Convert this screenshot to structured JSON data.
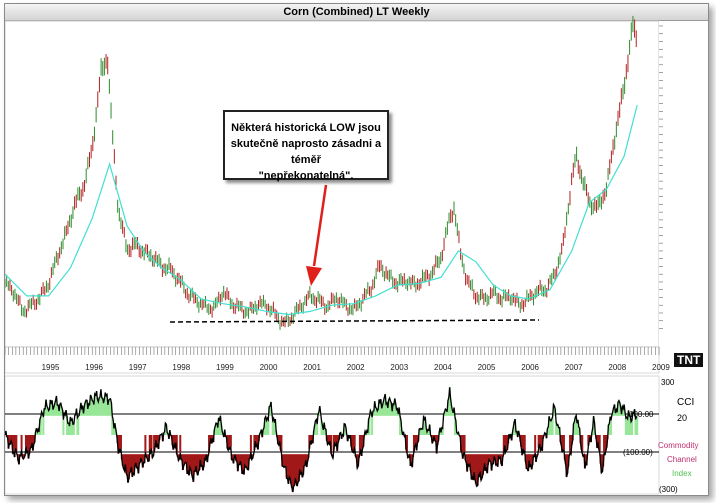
{
  "window": {
    "title": "Corn (Combined) LT Weekly"
  },
  "annotation": {
    "text_lines": [
      "Některá historická LOW jsou",
      "skutečně naprosto zásadni a téměř",
      "\"nepřekonatelná\"."
    ]
  },
  "logo": "TNT",
  "colors": {
    "price": "#8b1a1a",
    "ma": "#40e0d0",
    "cci_pos": "#98e698",
    "cci_neg": "#a01818",
    "cci_line": "#000000",
    "arrow": "#e0201a"
  },
  "chart_data": [
    {
      "type": "line",
      "title": "Corn (Combined) LT Weekly",
      "x_labels": [
        "1995",
        "1996",
        "1997",
        "1998",
        "1999",
        "2000",
        "2001",
        "2002",
        "2003",
        "2004",
        "2005",
        "2006",
        "2007",
        "2008",
        "2009"
      ],
      "ylim": [
        150,
        560
      ],
      "grid": false,
      "series": [
        {
          "style": "price bars",
          "x": [
            1994.0,
            1994.2,
            1994.4,
            1994.6,
            1994.8,
            1995.0,
            1995.2,
            1995.4,
            1995.6,
            1995.8,
            1996.0,
            1996.2,
            1996.35,
            1996.45,
            1996.6,
            1996.8,
            1997.0,
            1997.2,
            1997.4,
            1997.6,
            1997.8,
            1998.0,
            1998.2,
            1998.4,
            1998.6,
            1998.8,
            1999.0,
            1999.2,
            1999.4,
            1999.6,
            1999.8,
            2000.0,
            2000.2,
            2000.4,
            2000.6,
            2000.8,
            2001.0,
            2001.2,
            2001.4,
            2001.6,
            2001.8,
            2002.0,
            2002.2,
            2002.4,
            2002.6,
            2002.8,
            2003.0,
            2003.2,
            2003.4,
            2003.6,
            2003.8,
            2004.0,
            2004.2,
            2004.3,
            2004.45,
            2004.6,
            2004.8,
            2005.0,
            2005.2,
            2005.4,
            2005.6,
            2005.8,
            2006.0,
            2006.2,
            2006.4,
            2006.6,
            2006.8,
            2007.0,
            2007.1,
            2007.2,
            2007.4,
            2007.6,
            2007.8,
            2008.0,
            2008.2,
            2008.4,
            2008.5
          ],
          "values": [
            228,
            218,
            192,
            200,
            210,
            228,
            262,
            292,
            330,
            352,
            402,
            500,
            520,
            430,
            322,
            272,
            278,
            268,
            262,
            250,
            246,
            232,
            214,
            206,
            198,
            196,
            218,
            202,
            196,
            191,
            202,
            200,
            188,
            176,
            186,
            200,
            212,
            206,
            198,
            210,
            200,
            194,
            208,
            222,
            252,
            236,
            228,
            232,
            226,
            234,
            242,
            262,
            312,
            326,
            266,
            232,
            212,
            208,
            216,
            208,
            212,
            200,
            208,
            218,
            220,
            238,
            276,
            362,
            392,
            372,
            332,
            326,
            352,
            422,
            482,
            562,
            540
          ]
        },
        {
          "name": "",
          "style": "moving average",
          "x": [
            1994.0,
            1994.5,
            1995.0,
            1995.5,
            1996.0,
            1996.4,
            1996.8,
            1997.2,
            1997.6,
            1998.0,
            1998.5,
            1999.0,
            1999.5,
            2000.0,
            2000.5,
            2001.0,
            2001.5,
            2002.0,
            2002.5,
            2003.0,
            2003.5,
            2004.0,
            2004.4,
            2004.8,
            2005.2,
            2005.6,
            2006.0,
            2006.5,
            2007.0,
            2007.4,
            2007.8,
            2008.2,
            2008.5
          ],
          "values": [
            240,
            212,
            212,
            248,
            312,
            382,
            302,
            268,
            248,
            234,
            208,
            202,
            198,
            192,
            188,
            192,
            200,
            202,
            212,
            226,
            228,
            236,
            270,
            256,
            226,
            212,
            208,
            220,
            270,
            332,
            350,
            392,
            458
          ]
        }
      ]
    },
    {
      "type": "line",
      "ylim": [
        -300,
        300
      ],
      "y_ticks": [
        "300",
        "100.00",
        "(100.00)",
        "(300)"
      ],
      "legend": [
        "CCI",
        "20",
        "Commodity",
        "Channel",
        "Index"
      ],
      "series": [
        {
          "name": "CCI",
          "x": [
            1994.0,
            1994.3,
            1994.6,
            1994.9,
            1995.2,
            1995.5,
            1995.8,
            1996.1,
            1996.4,
            1996.6,
            1996.8,
            1997.1,
            1997.4,
            1997.7,
            1998.0,
            1998.3,
            1998.6,
            1998.9,
            1999.2,
            1999.5,
            1999.8,
            2000.1,
            2000.4,
            2000.6,
            2000.9,
            2001.2,
            2001.5,
            2001.8,
            2002.1,
            2002.4,
            2002.7,
            2003.0,
            2003.3,
            2003.6,
            2003.9,
            2004.2,
            2004.5,
            2004.8,
            2005.1,
            2005.4,
            2005.7,
            2006.0,
            2006.3,
            2006.6,
            2006.9,
            2007.1,
            2007.3,
            2007.5,
            2007.7,
            2007.9,
            2008.1,
            2008.3,
            2008.5
          ],
          "values": [
            0,
            -120,
            -80,
            140,
            170,
            60,
            150,
            200,
            190,
            -60,
            -220,
            -150,
            -90,
            40,
            -120,
            -210,
            -140,
            90,
            -110,
            -190,
            -40,
            150,
            -170,
            -280,
            -160,
            130,
            -100,
            40,
            -150,
            120,
            180,
            150,
            -160,
            80,
            -60,
            210,
            -100,
            -250,
            -150,
            -130,
            60,
            -180,
            -60,
            140,
            -200,
            120,
            -170,
            70,
            -190,
            110,
            160,
            90,
            110
          ]
        }
      ]
    }
  ]
}
